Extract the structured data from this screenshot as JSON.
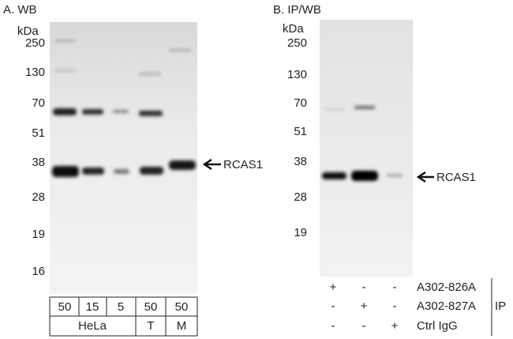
{
  "panel_a": {
    "title": "A. WB",
    "unit": "kDa",
    "markers": [
      "250",
      "130",
      "70",
      "51",
      "38",
      "28",
      "19",
      "16"
    ],
    "band_label": "RCAS1",
    "lanes": [
      "50",
      "15",
      "5",
      "50",
      "50"
    ],
    "groups": [
      "HeLa",
      "T",
      "M"
    ]
  },
  "panel_b": {
    "title": "B. IP/WB",
    "unit": "kDa",
    "markers": [
      "250",
      "130",
      "70",
      "51",
      "38",
      "28",
      "19"
    ],
    "band_label": "RCAS1",
    "rows": [
      {
        "name": "A302-826A",
        "marks": [
          "+",
          "-",
          "-"
        ]
      },
      {
        "name": "A302-827A",
        "marks": [
          "-",
          "+",
          "-"
        ]
      },
      {
        "name": "Ctrl IgG",
        "marks": [
          "-",
          "-",
          "+"
        ]
      }
    ],
    "group_label": "IP"
  }
}
